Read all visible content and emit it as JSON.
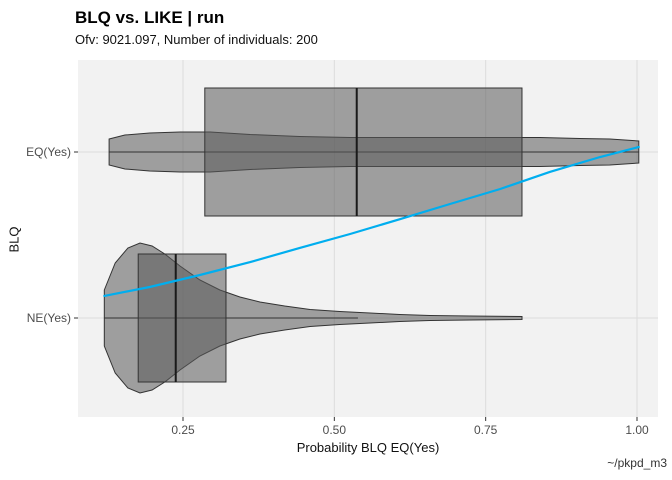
{
  "header": {
    "title": "BLQ vs. LIKE | run",
    "subtitle": "Ofv: 9021.097, Number of individuals: 200"
  },
  "caption": "~/pkpd_m3",
  "colors": {
    "page_bg": "#ffffff",
    "panel_bg": "#f2f2f2",
    "grid": "#dcdcdc",
    "shape_fill": "rgba(90,90,90,0.55)",
    "shape_stroke": "#333333",
    "median": "#1a1a1a",
    "smooth_line": "#00aeef",
    "axis_text": "#4d4d4d",
    "tick_mark": "#333333"
  },
  "chart_data": {
    "type": "violin+box",
    "title": "BLQ vs. LIKE | run",
    "subtitle": "Ofv: 9021.097, Number of individuals: 200",
    "xlabel": "Probability BLQ EQ(Yes)",
    "ylabel": "BLQ",
    "caption": "~/pkpd_m3",
    "x_ticks": [
      0.25,
      0.5,
      0.75,
      1.0
    ],
    "x_tick_labels": [
      "0.25",
      "0.50",
      "0.75",
      "1.00"
    ],
    "xlim": [
      0.077,
      1.031
    ],
    "grid": "major-only",
    "legend": "none",
    "categories": [
      "EQ(Yes)",
      "NE(Yes)"
    ],
    "groups": [
      {
        "label": "EQ(Yes)",
        "box": {
          "min": 0.128,
          "q1": 0.286,
          "median": 0.537,
          "q3": 0.81,
          "max": 1.003
        },
        "violin": [
          [
            0.128,
            0.65
          ],
          [
            0.154,
            0.85
          ],
          [
            0.195,
            0.95
          ],
          [
            0.245,
            1.0
          ],
          [
            0.295,
            1.0
          ],
          [
            0.361,
            0.875
          ],
          [
            0.443,
            0.775
          ],
          [
            0.526,
            0.725
          ],
          [
            0.609,
            0.725
          ],
          [
            0.691,
            0.725
          ],
          [
            0.774,
            0.725
          ],
          [
            0.84,
            0.725
          ],
          [
            0.906,
            0.675
          ],
          [
            0.955,
            0.65
          ],
          [
            1.003,
            0.55
          ]
        ]
      },
      {
        "label": "NE(Yes)",
        "box": {
          "min": 0.12,
          "q1": 0.176,
          "median": 0.238,
          "q3": 0.321,
          "max": 0.539
        },
        "violin": [
          [
            0.12,
            0.373
          ],
          [
            0.138,
            0.733
          ],
          [
            0.159,
            0.933
          ],
          [
            0.179,
            1.0
          ],
          [
            0.199,
            0.96
          ],
          [
            0.22,
            0.853
          ],
          [
            0.245,
            0.693
          ],
          [
            0.278,
            0.507
          ],
          [
            0.311,
            0.373
          ],
          [
            0.344,
            0.28
          ],
          [
            0.377,
            0.213
          ],
          [
            0.418,
            0.16
          ],
          [
            0.46,
            0.113
          ],
          [
            0.509,
            0.087
          ],
          [
            0.559,
            0.067
          ],
          [
            0.608,
            0.047
          ],
          [
            0.658,
            0.033
          ],
          [
            0.724,
            0.027
          ],
          [
            0.81,
            0.02
          ]
        ]
      }
    ],
    "smooth_line": {
      "description": "probability of BLQ EQ(Yes), x = probability, y = fraction of distance from NE(Yes) row up to EQ(Yes) row",
      "points": [
        [
          0.12,
          0.133
        ],
        [
          0.195,
          0.187
        ],
        [
          0.278,
          0.259
        ],
        [
          0.361,
          0.337
        ],
        [
          0.443,
          0.422
        ],
        [
          0.526,
          0.506
        ],
        [
          0.609,
          0.596
        ],
        [
          0.691,
          0.687
        ],
        [
          0.774,
          0.777
        ],
        [
          0.856,
          0.88
        ],
        [
          0.939,
          0.97
        ],
        [
          1.003,
          1.03
        ]
      ]
    }
  }
}
